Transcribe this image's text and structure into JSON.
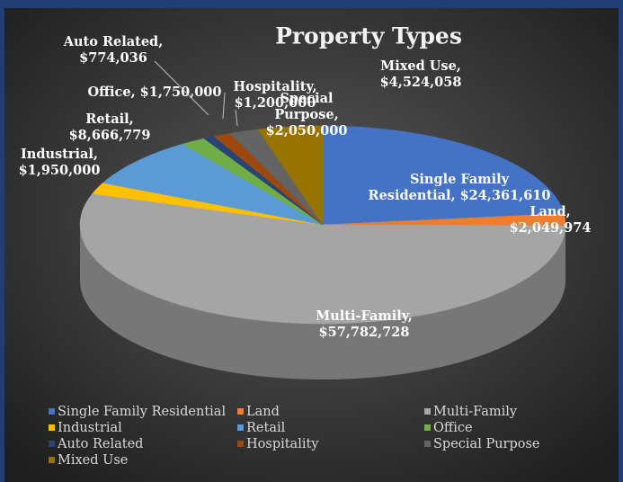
{
  "chart_data": {
    "type": "pie3d",
    "title": "Property Types",
    "categories": [
      "Single Family Residential",
      "Land",
      "Multi-Family",
      "Industrial",
      "Retail",
      "Office",
      "Auto Related",
      "Hospitality",
      "Special Purpose",
      "Mixed Use"
    ],
    "values": [
      24361610,
      2049974,
      57782728,
      1950000,
      8666779,
      1750000,
      774036,
      1200000,
      2050000,
      4524058
    ],
    "value_labels": [
      [
        "Single Family",
        "Residential,  $24,361,610"
      ],
      [
        "Land,",
        "$2,049,974"
      ],
      [
        "Multi-Family,",
        "$57,782,728"
      ],
      [
        "Industrial,",
        "$1,950,000"
      ],
      [
        "Retail,",
        "$8,666,779"
      ],
      [
        "Office,  $1,750,000"
      ],
      [
        "Auto Related,",
        "$774,036"
      ],
      [
        "Hospitality,",
        "$1,200,000"
      ],
      [
        "Special",
        "Purpose,",
        "$2,050,000"
      ],
      [
        "Mixed Use,",
        "$4,524,058"
      ]
    ],
    "colors": [
      "#4472c4",
      "#ed7d31",
      "#a5a5a5",
      "#ffc000",
      "#5b9bd5",
      "#70ad47",
      "#264478",
      "#9e480e",
      "#636363",
      "#997300"
    ],
    "legend": "bottom"
  }
}
